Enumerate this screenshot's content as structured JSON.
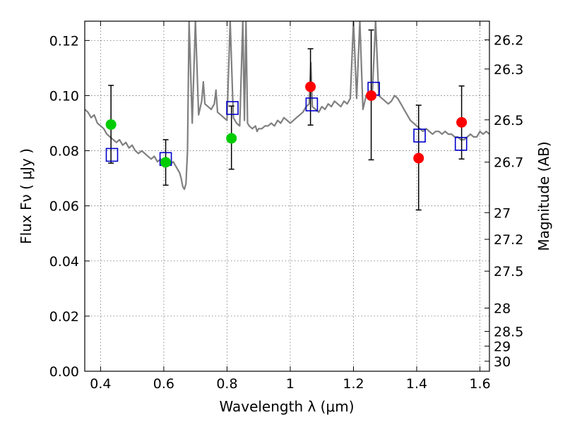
{
  "chart_data": {
    "type": "scatter",
    "xlabel": "Wavelength  λ (μm)",
    "ylabel": "Flux  Fν  ( μJy )",
    "y2label": "Magnitude (AB)",
    "xlim": [
      0.35,
      1.63
    ],
    "ylim": [
      0.0,
      0.127
    ],
    "grid": true,
    "x_ticks": [
      0.4,
      0.6,
      0.8,
      1.0,
      1.2,
      1.4,
      1.6
    ],
    "x_tick_labels": [
      "0.4",
      "0.6",
      "0.8",
      "1",
      "1.2",
      "1.4",
      "1.6"
    ],
    "y_ticks": [
      0.0,
      0.02,
      0.04,
      0.06,
      0.08,
      0.1,
      0.12
    ],
    "y_tick_labels": [
      "0.00",
      "0.02",
      "0.04",
      "0.06",
      "0.08",
      "0.10",
      "0.12"
    ],
    "magnitude_ticks": [
      "26.2",
      "26.3",
      "26.5",
      "26.7",
      "27",
      "27.2",
      "27.5",
      "28",
      "28.5",
      "29",
      "30"
    ],
    "colors": {
      "template": "#808080",
      "green_points": "#00cc00",
      "red_points": "#ff0000",
      "model_boxes": "#0000cc",
      "error_bars": "#000000"
    },
    "series": [
      {
        "marker": "circle-green",
        "x": [
          0.433,
          0.606,
          0.814
        ],
        "y": [
          0.0895,
          0.0758,
          0.0845
        ],
        "yerr_low": [
          0.0755,
          0.0675,
          0.0733
        ],
        "yerr_high": [
          0.1037,
          0.084,
          0.0962
        ]
      },
      {
        "marker": "circle-red",
        "x": [
          1.064,
          1.256,
          1.406,
          1.542
        ],
        "y": [
          0.1032,
          0.1,
          0.0773,
          0.0903
        ],
        "yerr_low": [
          0.0893,
          0.0767,
          0.0585,
          0.077
        ],
        "yerr_high": [
          0.117,
          0.1238,
          0.0965,
          0.1035
        ]
      },
      {
        "marker": "square-blue-open",
        "x": [
          0.436,
          0.606,
          0.817,
          1.068,
          1.264,
          1.409,
          1.54
        ],
        "y": [
          0.0785,
          0.077,
          0.0955,
          0.0968,
          0.1025,
          0.0855,
          0.0825
        ]
      }
    ],
    "template_spectrum": {
      "x": [
        0.35,
        0.36,
        0.37,
        0.38,
        0.39,
        0.4,
        0.41,
        0.42,
        0.43,
        0.44,
        0.45,
        0.46,
        0.47,
        0.48,
        0.49,
        0.5,
        0.51,
        0.52,
        0.53,
        0.54,
        0.55,
        0.56,
        0.57,
        0.58,
        0.59,
        0.6,
        0.61,
        0.62,
        0.63,
        0.64,
        0.645,
        0.65,
        0.655,
        0.66,
        0.665,
        0.67,
        0.675,
        0.68,
        0.69,
        0.7,
        0.71,
        0.72,
        0.725,
        0.73,
        0.74,
        0.75,
        0.76,
        0.765,
        0.77,
        0.78,
        0.79,
        0.8,
        0.81,
        0.82,
        0.83,
        0.84,
        0.85,
        0.855,
        0.86,
        0.865,
        0.87,
        0.88,
        0.89,
        0.895,
        0.9,
        0.91,
        0.92,
        0.93,
        0.94,
        0.95,
        0.96,
        0.97,
        0.98,
        0.99,
        1.0,
        1.01,
        1.02,
        1.03,
        1.04,
        1.05,
        1.06,
        1.065,
        1.07,
        1.08,
        1.09,
        1.1,
        1.11,
        1.12,
        1.13,
        1.14,
        1.15,
        1.16,
        1.17,
        1.18,
        1.19,
        1.2,
        1.21,
        1.22,
        1.23,
        1.24,
        1.25,
        1.26,
        1.27,
        1.28,
        1.29,
        1.3,
        1.31,
        1.32,
        1.33,
        1.34,
        1.35,
        1.36,
        1.37,
        1.38,
        1.39,
        1.4,
        1.41,
        1.42,
        1.43,
        1.44,
        1.45,
        1.46,
        1.47,
        1.48,
        1.49,
        1.5,
        1.51,
        1.52,
        1.53,
        1.54,
        1.55,
        1.56,
        1.57,
        1.58,
        1.59,
        1.6,
        1.61,
        1.62,
        1.63
      ],
      "y": [
        0.095,
        0.094,
        0.092,
        0.093,
        0.09,
        0.089,
        0.088,
        0.086,
        0.085,
        0.084,
        0.083,
        0.084,
        0.082,
        0.083,
        0.081,
        0.082,
        0.08,
        0.079,
        0.08,
        0.079,
        0.078,
        0.077,
        0.078,
        0.076,
        0.077,
        0.075,
        0.076,
        0.075,
        0.076,
        0.074,
        0.073,
        0.072,
        0.07,
        0.067,
        0.066,
        0.068,
        0.08,
        0.127,
        0.09,
        0.127,
        0.093,
        0.098,
        0.105,
        0.097,
        0.096,
        0.095,
        0.097,
        0.102,
        0.094,
        0.093,
        0.092,
        0.091,
        0.127,
        0.092,
        0.09,
        0.089,
        0.127,
        0.091,
        0.127,
        0.09,
        0.089,
        0.088,
        0.089,
        0.087,
        0.088,
        0.088,
        0.089,
        0.089,
        0.09,
        0.089,
        0.091,
        0.09,
        0.092,
        0.091,
        0.09,
        0.091,
        0.092,
        0.093,
        0.094,
        0.096,
        0.097,
        0.112,
        0.096,
        0.095,
        0.094,
        0.096,
        0.095,
        0.097,
        0.096,
        0.098,
        0.097,
        0.096,
        0.098,
        0.097,
        0.099,
        0.127,
        0.099,
        0.127,
        0.095,
        0.1,
        0.101,
        0.102,
        0.127,
        0.1,
        0.099,
        0.098,
        0.097,
        0.098,
        0.1,
        0.099,
        0.097,
        0.095,
        0.093,
        0.091,
        0.09,
        0.089,
        0.088,
        0.087,
        0.088,
        0.087,
        0.086,
        0.087,
        0.087,
        0.086,
        0.087,
        0.086,
        0.086,
        0.085,
        0.085,
        0.084,
        0.084,
        0.085,
        0.086,
        0.085,
        0.085,
        0.087,
        0.086,
        0.087,
        0.086
      ]
    }
  }
}
